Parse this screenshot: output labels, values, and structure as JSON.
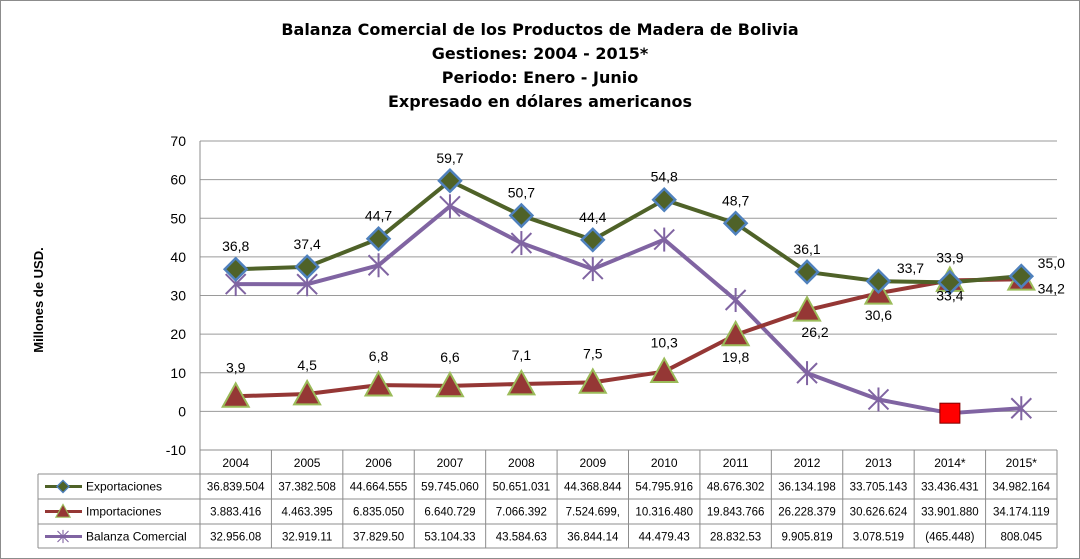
{
  "title_lines": [
    "Balanza Comercial de los Productos de Madera de Bolivia",
    "Gestiones: 2004 - 2015*",
    "Periodo: Enero - Junio",
    "Expresado en dólares americanos"
  ],
  "chart_data": {
    "type": "line",
    "title": "Balanza Comercial de los Productos de Madera de Bolivia",
    "ylabel": "Millones de USD.",
    "ylim": [
      -10,
      70
    ],
    "yticks": [
      "-10",
      "0",
      "10",
      "20",
      "30",
      "40",
      "50",
      "60",
      "70"
    ],
    "ytick_values": [
      -10,
      0,
      10,
      20,
      30,
      40,
      50,
      60,
      70
    ],
    "grid": true,
    "legend": "data-table",
    "categories": [
      "2004",
      "2005",
      "2006",
      "2007",
      "2008",
      "2009",
      "2010",
      "2011",
      "2012",
      "2013",
      "2014*",
      "2015*"
    ],
    "series": [
      {
        "name": "Exportaciones",
        "color": "#4f6228",
        "marker": "diamond",
        "values": [
          36.8,
          37.4,
          44.7,
          59.7,
          50.7,
          44.4,
          54.8,
          48.7,
          36.1,
          33.7,
          33.4,
          35.0
        ],
        "data_labels": [
          "36,8",
          "37,4",
          "44,7",
          "59,7",
          "50,7",
          "44,4",
          "54,8",
          "48,7",
          "36,1",
          "33,7",
          "33,4",
          "35,0"
        ],
        "table": [
          "36.839.504",
          "37.382.508",
          "44.664.555",
          "59.745.060",
          "50.651.031",
          "44.368.844",
          "54.795.916",
          "48.676.302",
          "36.134.198",
          "33.705.143",
          "33.436.431",
          "34.982.164"
        ]
      },
      {
        "name": "Importaciones",
        "color": "#953735",
        "marker": "triangle",
        "values": [
          3.9,
          4.5,
          6.8,
          6.6,
          7.1,
          7.5,
          10.3,
          19.8,
          26.2,
          30.6,
          33.9,
          34.2
        ],
        "data_labels": [
          "3,9",
          "4,5",
          "6,8",
          "6,6",
          "7,1",
          "7,5",
          "10,3",
          "19,8",
          "26,2",
          "30,6",
          "33,9",
          "34,2"
        ],
        "table": [
          "3.883.416",
          "4.463.395",
          "6.835.050",
          "6.640.729",
          "7.066.392",
          "7.524.699,",
          "10.316.480",
          "19.843.766",
          "26.228.379",
          "30.626.624",
          "33.901.880",
          "34.174.119"
        ]
      },
      {
        "name": "Balanza Comercial",
        "color": "#8064a2",
        "marker": "star",
        "values": [
          32.96,
          32.92,
          37.83,
          53.1,
          43.58,
          36.84,
          44.48,
          28.83,
          9.9,
          3.08,
          -0.47,
          0.81
        ],
        "table": [
          "32.956.08",
          "32.919.11",
          "37.829.50",
          "53.104.33",
          "43.584.63",
          "36.844.14",
          "44.479.43",
          "28.832.53",
          "9.905.819",
          "3.078.519",
          "(465.448)",
          "808.045"
        ]
      }
    ],
    "highlight_point": {
      "series": "Balanza Comercial",
      "category": "2014*",
      "color": "#ff0000"
    }
  }
}
